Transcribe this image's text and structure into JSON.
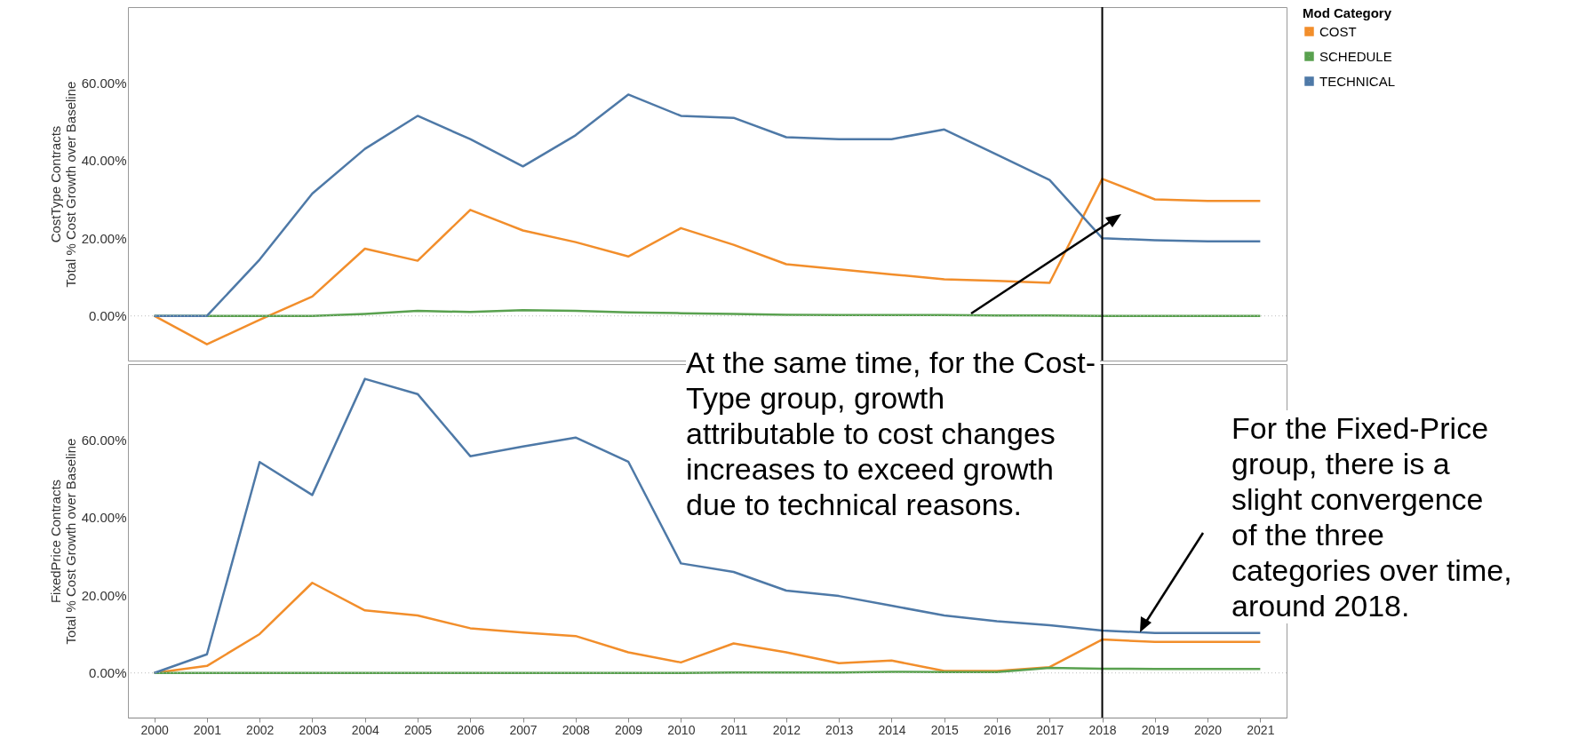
{
  "chart_data": [
    {
      "type": "line",
      "ylabel": "CostType Contracts\nTotal % Cost Growth over Baseline",
      "legend_title": "Mod Category",
      "legend": "top right",
      "tick_labels": "y",
      "grid": false,
      "line_style": "solid",
      "marker": "none",
      "x": [
        2000,
        2001,
        2002,
        2003,
        2004,
        2005,
        2006,
        2007,
        2008,
        2009,
        2010,
        2011,
        2012,
        2013,
        2014,
        2015,
        2016,
        2017,
        2018,
        2019,
        2020,
        2021
      ],
      "xlim": [
        1999.5,
        2021.5
      ],
      "xticks": [
        2000,
        2001,
        2002,
        2003,
        2004,
        2005,
        2006,
        2007,
        2008,
        2009,
        2010,
        2011,
        2012,
        2013,
        2014,
        2015,
        2016,
        2017,
        2018,
        2019,
        2020,
        2021
      ],
      "ylim": [
        -11.5,
        79.5
      ],
      "yticks": [
        {
          "value": 0,
          "label": "0.00%"
        },
        {
          "value": 20,
          "label": "20.00%"
        },
        {
          "value": 40,
          "label": "40.00%"
        },
        {
          "value": 60,
          "label": "60.00%"
        }
      ],
      "ref_lines": [
        {
          "axis": "y",
          "value": 0,
          "label": null,
          "color": "#bbbbbb",
          "line_style": "dotted"
        },
        {
          "axis": "x",
          "value": 2018,
          "label": null,
          "color": "#000000",
          "line_style": "solid"
        }
      ],
      "series": [
        {
          "name": "COST",
          "color": "#f28e2b",
          "values": [
            0,
            -7.3,
            -1,
            5,
            17.3,
            14.2,
            27.3,
            22,
            19,
            15.3,
            22.6,
            18.3,
            13.3,
            12,
            10.7,
            9.4,
            9,
            8.5,
            35.3,
            30,
            29.6,
            29.6
          ]
        },
        {
          "name": "SCHEDULE",
          "color": "#59a14f",
          "values": [
            0,
            0,
            0,
            0,
            0.5,
            1.3,
            1,
            1.5,
            1.3,
            0.9,
            0.7,
            0.5,
            0.3,
            0.2,
            0.2,
            0.2,
            0.1,
            0.1,
            0,
            0,
            0,
            0
          ]
        },
        {
          "name": "TECHNICAL",
          "color": "#4e79a7",
          "values": [
            0,
            0,
            14.5,
            31.5,
            43,
            51.5,
            45.5,
            38.5,
            46.5,
            57,
            51.5,
            51,
            46,
            45.5,
            45.5,
            48,
            41.5,
            35,
            20,
            19.5,
            19.2,
            19.2
          ]
        }
      ],
      "annotations": [
        "At the same time, for the Cost-Type group, growth attributable to cost changes increases to exceed growth due to technical reasons."
      ]
    },
    {
      "type": "line",
      "ylabel": "FixedPrice Contracts\nTotal % Cost Growth over Baseline",
      "grid": false,
      "line_style": "solid",
      "marker": "none",
      "x": [
        2000,
        2001,
        2002,
        2003,
        2004,
        2005,
        2006,
        2007,
        2008,
        2009,
        2010,
        2011,
        2012,
        2013,
        2014,
        2015,
        2016,
        2017,
        2018,
        2019,
        2020,
        2021
      ],
      "xlim": [
        1999.5,
        2021.5
      ],
      "xticks": [
        2000,
        2001,
        2002,
        2003,
        2004,
        2005,
        2006,
        2007,
        2008,
        2009,
        2010,
        2011,
        2012,
        2013,
        2014,
        2015,
        2016,
        2017,
        2018,
        2019,
        2020,
        2021
      ],
      "ylim": [
        -11.5,
        79.5
      ],
      "yticks": [
        {
          "value": 0,
          "label": "0.00%"
        },
        {
          "value": 20,
          "label": "20.00%"
        },
        {
          "value": 40,
          "label": "40.00%"
        },
        {
          "value": 60,
          "label": "60.00%"
        }
      ],
      "ref_lines": [
        {
          "axis": "y",
          "value": 0,
          "label": null,
          "color": "#bbbbbb",
          "line_style": "dotted"
        },
        {
          "axis": "x",
          "value": 2018,
          "label": null,
          "color": "#000000",
          "line_style": "solid"
        }
      ],
      "series": [
        {
          "color": "#f28e2b",
          "values": [
            0,
            1.8,
            10,
            23.2,
            16.1,
            14.8,
            11.5,
            10.4,
            9.5,
            5.3,
            2.7,
            7.6,
            5.3,
            2.5,
            3.2,
            0.5,
            0.5,
            1.5,
            8.6,
            8,
            8,
            8
          ]
        },
        {
          "color": "#59a14f",
          "values": [
            0,
            0,
            0,
            0,
            0,
            0,
            0,
            0,
            0,
            0,
            0,
            0.1,
            0.1,
            0.1,
            0.3,
            0.2,
            0.2,
            1.3,
            1.1,
            1,
            1,
            1
          ]
        },
        {
          "color": "#4e79a7",
          "values": [
            0,
            4.8,
            54.3,
            45.8,
            75.7,
            71.8,
            55.8,
            58.3,
            60.6,
            54.4,
            28.2,
            26,
            21.2,
            19.8,
            17.3,
            14.8,
            13.3,
            12.3,
            10.9,
            10.3,
            10.3,
            10.3
          ]
        }
      ],
      "annotations": [
        "For the Fixed-Price group, there is a slight convergence of the three categories over time, around 2018."
      ]
    }
  ]
}
